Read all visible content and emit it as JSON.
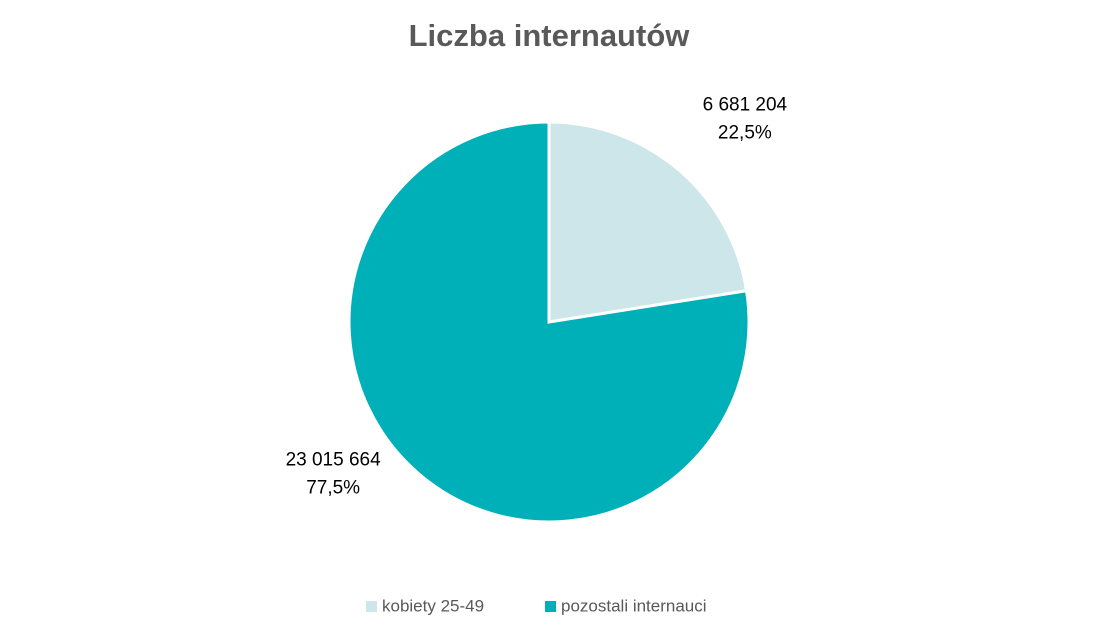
{
  "chart_data": {
    "type": "pie",
    "title": "Liczba internautów",
    "categories": [
      "kobiety 25-49",
      "pozostali internauci"
    ],
    "values": [
      6681204,
      23015664
    ],
    "value_labels": [
      "6 681 204",
      "23 015 664"
    ],
    "percents": [
      22.5,
      77.5
    ],
    "percent_labels": [
      "22,5%",
      "77,5%"
    ],
    "colors": [
      "#cde6ea",
      "#00b0b9"
    ],
    "legend": "bottom"
  }
}
